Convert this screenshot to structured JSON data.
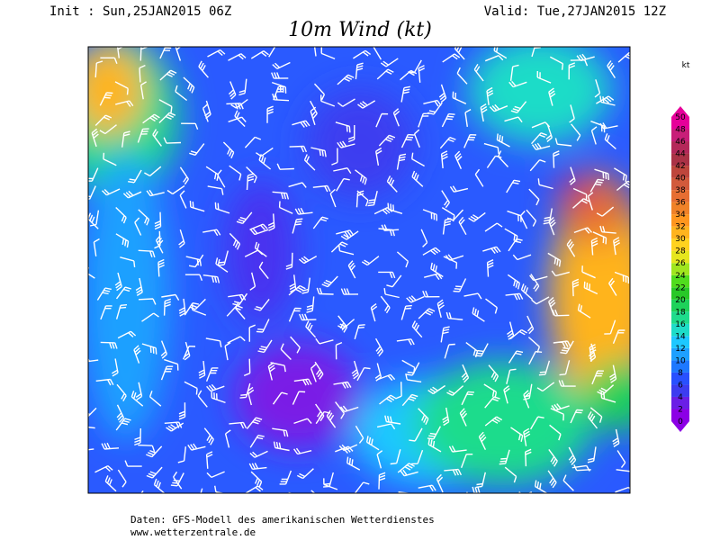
{
  "header": {
    "init": "Init : Sun,25JAN2015 06Z",
    "valid": "Valid: Tue,27JAN2015 12Z",
    "title": "10m Wind (kt)"
  },
  "colorbar": {
    "unit": "kt",
    "levels": [
      0,
      2,
      4,
      6,
      8,
      10,
      12,
      14,
      16,
      18,
      20,
      22,
      24,
      26,
      28,
      30,
      32,
      34,
      36,
      38,
      40,
      42,
      44,
      46,
      48,
      50
    ],
    "colors": [
      "#8c00e6",
      "#6a1fe6",
      "#3c3cf0",
      "#2850ff",
      "#1e78ff",
      "#1ea0ff",
      "#1ec8ff",
      "#1edcc8",
      "#1edc8c",
      "#1ed25a",
      "#28c828",
      "#50dc1e",
      "#a0e61e",
      "#e6e61e",
      "#ffd21e",
      "#ffb41e",
      "#ff961e",
      "#f08228",
      "#e66e32",
      "#d25a3c",
      "#be463c",
      "#aa3246",
      "#b4285a",
      "#c81e78",
      "#e6009a"
    ]
  },
  "footer": {
    "source": "Daten: GFS-Modell des amerikanischen Wetterdienstes",
    "url": "www.wetterzentrale.de"
  }
}
